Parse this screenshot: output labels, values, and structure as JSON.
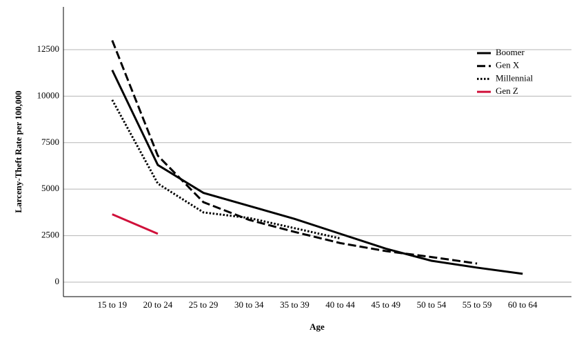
{
  "chart_data": {
    "type": "line",
    "x_label": "Age",
    "y_label": "Larceny-Theft Rate per 100,000",
    "categories": [
      "15 to 19",
      "20 to 24",
      "25 to 29",
      "30 to 34",
      "35 to 39",
      "40 to 44",
      "45 to 49",
      "50 to 54",
      "55 to 59",
      "60 to 64"
    ],
    "series": [
      {
        "name": "Boomer",
        "color": "#000000",
        "dash": "solid",
        "values": [
          11400,
          6300,
          4800,
          4100,
          3400,
          2600,
          1800,
          1150,
          780,
          450
        ]
      },
      {
        "name": "Gen X",
        "color": "#000000",
        "dash": "dashed",
        "values": [
          13000,
          6800,
          4300,
          3350,
          2700,
          2100,
          1670,
          1350,
          1000,
          null
        ]
      },
      {
        "name": "Millennial",
        "color": "#000000",
        "dash": "dotted",
        "values": [
          9800,
          5300,
          3750,
          3450,
          2900,
          2350,
          null,
          null,
          null,
          null
        ]
      },
      {
        "name": "Gen Z",
        "color": "#d0103a",
        "dash": "solid",
        "values": [
          3650,
          2600,
          null,
          null,
          null,
          null,
          null,
          null,
          null,
          null
        ]
      }
    ],
    "ylim": [
      -780,
      14800
    ],
    "yticks": [
      0,
      2500,
      5000,
      7500,
      10000,
      12500
    ],
    "grid": true,
    "legend": "top-right"
  }
}
